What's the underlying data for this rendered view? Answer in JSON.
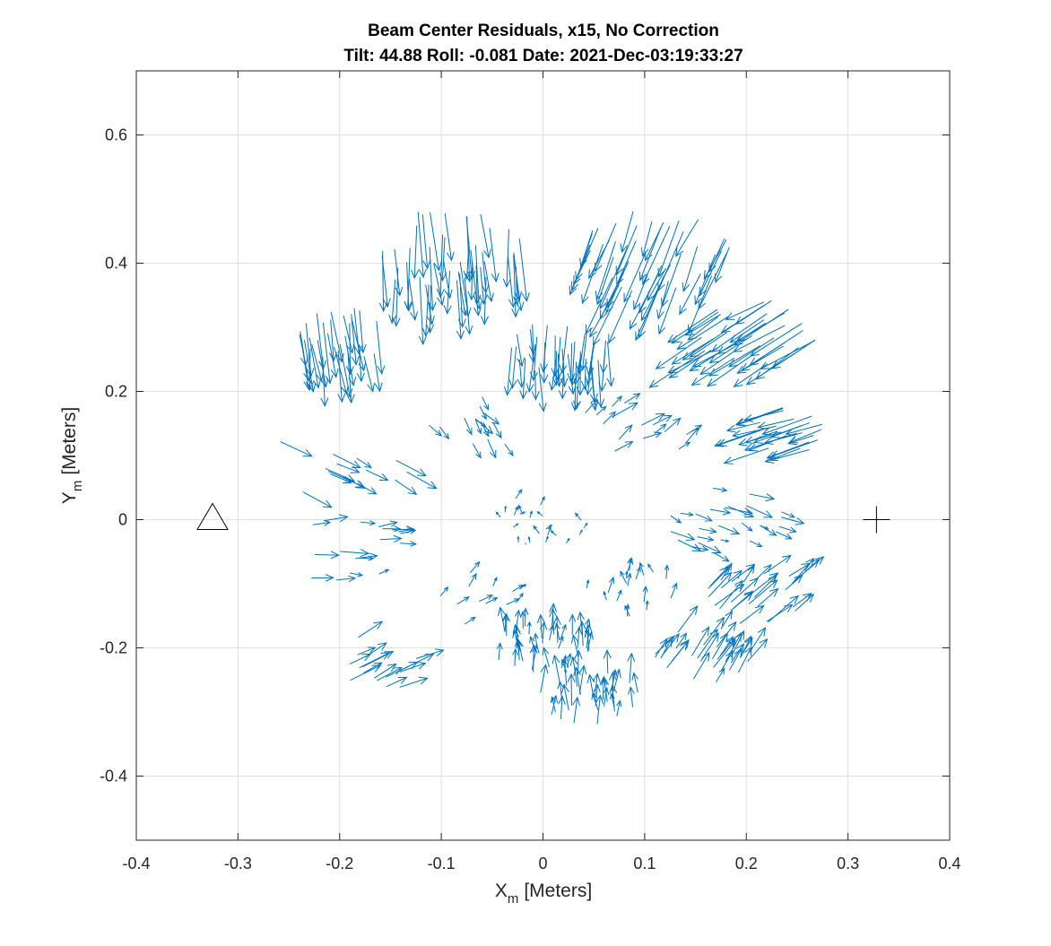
{
  "chart_data": {
    "type": "quiver",
    "title": "Beam Center Residuals, x15, No Correction",
    "subtitle": "Tilt: 44.88  Roll: -0.081  Date: 2021-Dec-03:19:33:27",
    "xlabel": {
      "main": "X",
      "sub": "m",
      "unit": "[Meters]"
    },
    "ylabel": {
      "main": "Y",
      "sub": "m",
      "unit": "[Meters]"
    },
    "xlim": [
      -0.4,
      0.4
    ],
    "ylim": [
      -0.5,
      0.7
    ],
    "x_ticks": [
      -0.4,
      -0.3,
      -0.2,
      -0.1,
      0,
      0.1,
      0.2,
      0.3,
      0.4
    ],
    "x_tick_labels": [
      "-0.4",
      "-0.3",
      "-0.2",
      "-0.1",
      "0",
      "0.1",
      "0.2",
      "0.3",
      "0.4"
    ],
    "y_ticks": [
      -0.4,
      -0.2,
      0,
      0.2,
      0.4,
      0.6
    ],
    "y_tick_labels": [
      "-0.4",
      "-0.2",
      "0",
      "0.2",
      "0.4",
      "0.6"
    ],
    "grid": true,
    "series_color": "#0072BD",
    "markers": [
      {
        "shape": "triangle",
        "x": -0.325,
        "y": 0.0
      },
      {
        "shape": "plus",
        "x": 0.328,
        "y": 0.0
      }
    ],
    "scale_factor": 15,
    "field_groups": [
      {
        "region": "top-left lobe",
        "center": [
          -0.19,
          0.29
        ],
        "radius": 0.05,
        "count": 30,
        "mean_dir": [
          0.006,
          -0.07
        ]
      },
      {
        "region": "top-mid-left lobe",
        "center": [
          -0.095,
          0.42
        ],
        "radius": 0.075,
        "count": 48,
        "mean_dir": [
          0.003,
          -0.08
        ]
      },
      {
        "region": "top-mid-right lobe",
        "center": [
          0.11,
          0.42
        ],
        "radius": 0.075,
        "count": 48,
        "mean_dir": [
          -0.02,
          -0.075
        ]
      },
      {
        "region": "top-center lobe",
        "center": [
          0.015,
          0.27
        ],
        "radius": 0.05,
        "count": 40,
        "mean_dir": [
          0.0,
          -0.06
        ]
      },
      {
        "region": "right-upper lobe",
        "center": [
          0.21,
          0.29
        ],
        "radius": 0.06,
        "count": 38,
        "mean_dir": [
          -0.045,
          -0.045
        ]
      },
      {
        "region": "right lobe",
        "center": [
          0.245,
          0.14
        ],
        "radius": 0.04,
        "count": 24,
        "mean_dir": [
          -0.04,
          -0.02
        ]
      },
      {
        "region": "left row",
        "center": [
          -0.2,
          0.09
        ],
        "radius": 0.07,
        "count": 14,
        "mean_dir": [
          0.025,
          -0.018
        ]
      },
      {
        "region": "inner upper-left",
        "center": [
          -0.07,
          0.15
        ],
        "radius": 0.05,
        "count": 14,
        "mean_dir": [
          0.01,
          -0.02
        ]
      },
      {
        "region": "inner upper-right",
        "center": [
          0.09,
          0.14
        ],
        "radius": 0.06,
        "count": 16,
        "mean_dir": [
          0.015,
          0.015
        ]
      },
      {
        "region": "center",
        "center": [
          0.0,
          0.0
        ],
        "radius": 0.05,
        "count": 22,
        "mean_dir": [
          0.0,
          0.008
        ]
      },
      {
        "region": "left middle",
        "center": [
          -0.19,
          -0.06
        ],
        "radius": 0.07,
        "count": 18,
        "mean_dir": [
          0.02,
          0.002
        ]
      },
      {
        "region": "right middle",
        "center": [
          0.18,
          0.0
        ],
        "radius": 0.06,
        "count": 26,
        "mean_dir": [
          0.018,
          -0.01
        ]
      },
      {
        "region": "inner lower-left",
        "center": [
          -0.07,
          -0.12
        ],
        "radius": 0.05,
        "count": 12,
        "mean_dir": [
          0.008,
          0.012
        ]
      },
      {
        "region": "inner lower-right",
        "center": [
          0.09,
          -0.11
        ],
        "radius": 0.05,
        "count": 18,
        "mean_dir": [
          0.0,
          0.018
        ]
      },
      {
        "region": "lower-left lobe",
        "center": [
          -0.16,
          -0.22
        ],
        "radius": 0.05,
        "count": 16,
        "mean_dir": [
          0.025,
          0.02
        ]
      },
      {
        "region": "bottom-left-center lobe",
        "center": [
          0.0,
          -0.2
        ],
        "radius": 0.05,
        "count": 40,
        "mean_dir": [
          0.0,
          0.03
        ]
      },
      {
        "region": "bottom lobe",
        "center": [
          0.045,
          -0.28
        ],
        "radius": 0.05,
        "count": 32,
        "mean_dir": [
          0.0,
          0.035
        ]
      },
      {
        "region": "lower-right lobe",
        "center": [
          0.16,
          -0.21
        ],
        "radius": 0.05,
        "count": 30,
        "mean_dir": [
          0.015,
          0.035
        ]
      },
      {
        "region": "right-lower lobe",
        "center": [
          0.21,
          -0.12
        ],
        "radius": 0.05,
        "count": 28,
        "mean_dir": [
          0.02,
          0.03
        ]
      }
    ]
  }
}
